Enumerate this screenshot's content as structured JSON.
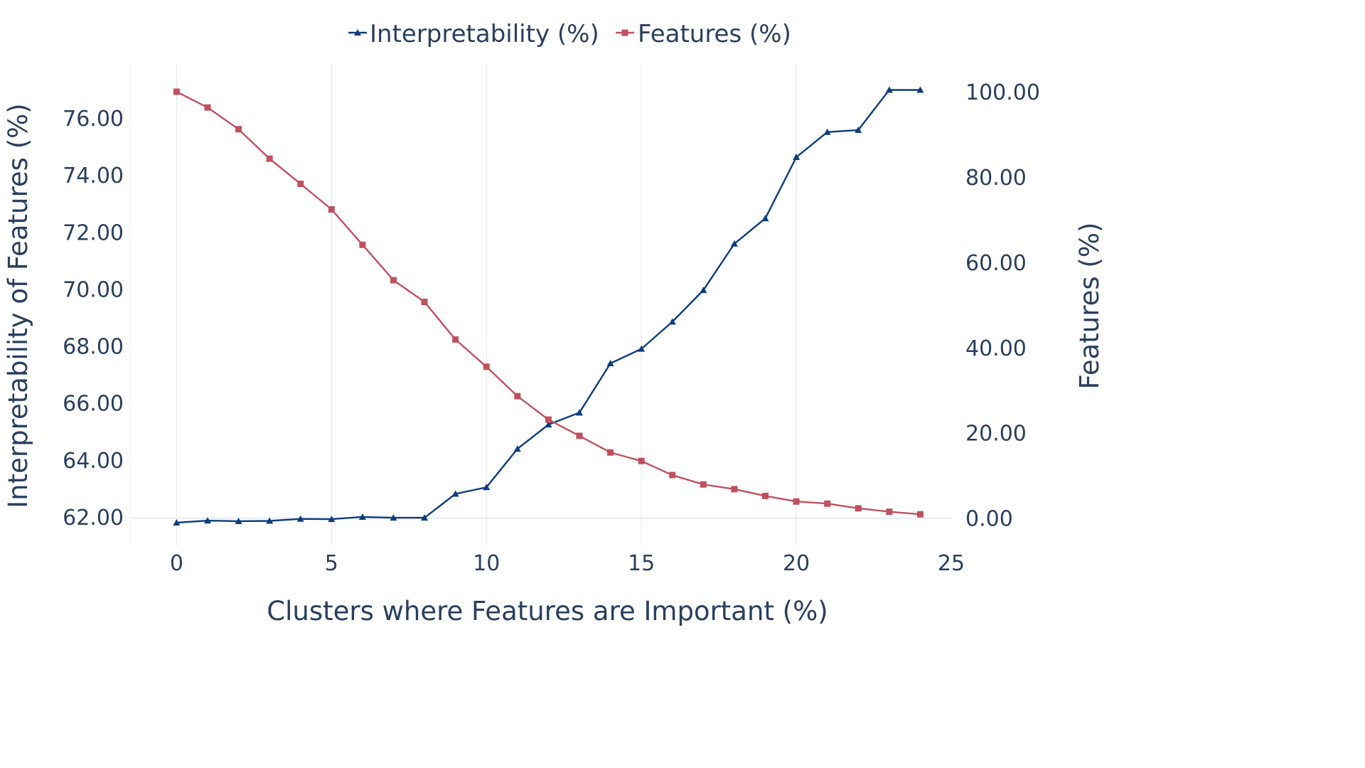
{
  "chart_data": {
    "type": "line",
    "x": [
      0,
      1,
      2,
      3,
      4,
      5,
      6,
      7,
      8,
      9,
      10,
      11,
      12,
      13,
      14,
      15,
      16,
      17,
      18,
      19,
      20,
      21,
      22,
      23,
      24
    ],
    "xlabel": "Clusters where Features are Important (%)",
    "ylabel_left": "Interpretability of Features (%)",
    "ylabel_right": "Features (%)",
    "xlim": [
      -1.5,
      25
    ],
    "x_ticks": [
      0,
      5,
      10,
      15,
      20,
      25
    ],
    "ylim_left": [
      61.0,
      77.9
    ],
    "y_ticks_left": [
      "62.00",
      "64.00",
      "66.00",
      "68.00",
      "70.00",
      "72.00",
      "74.00",
      "76.00"
    ],
    "ylim_right": [
      -6.4,
      106.5
    ],
    "y_ticks_right": [
      "0.00",
      "20.00",
      "40.00",
      "60.00",
      "80.00",
      "100.00"
    ],
    "grid": "vertical",
    "legend_position": "top-center",
    "series": [
      {
        "name": "Interpretability (%)",
        "axis": "left",
        "color": "#0b3d7e",
        "marker": "triangle",
        "values": [
          61.8,
          61.87,
          61.85,
          61.86,
          61.93,
          61.92,
          62.0,
          61.97,
          61.97,
          62.81,
          63.04,
          64.39,
          65.24,
          65.66,
          67.39,
          67.9,
          68.85,
          69.96,
          71.59,
          72.48,
          74.63,
          75.51,
          75.58,
          76.99,
          76.99
        ]
      },
      {
        "name": "Features (%)",
        "axis": "right",
        "color": "#c0505f",
        "marker": "square",
        "values": [
          100.0,
          96.3,
          91.2,
          84.3,
          78.4,
          72.4,
          64.1,
          55.8,
          50.7,
          41.9,
          35.5,
          28.6,
          23.1,
          19.3,
          15.4,
          13.4,
          10.1,
          7.9,
          6.8,
          5.2,
          3.9,
          3.4,
          2.3,
          1.5,
          0.9
        ]
      }
    ]
  }
}
